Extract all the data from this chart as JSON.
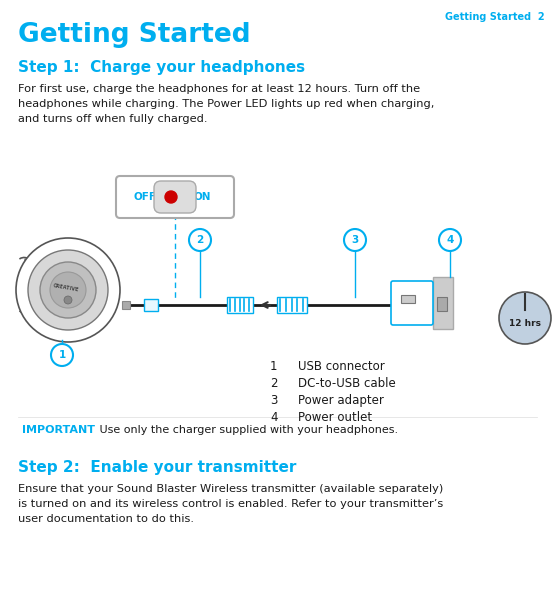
{
  "page_header": "Getting Started  2",
  "main_title": "Getting Started",
  "step1_title": "Step 1:  Charge your headphones",
  "step1_text": "For first use, charge the headphones for at least 12 hours. Turn off the\nheadphones while charging. The Power LED lights up red when charging,\nand turns off when fully charged.",
  "step2_title": "Step 2:  Enable your transmitter",
  "step2_text": "Ensure that your Sound Blaster Wireless transmitter (available separately)\nis turned on and its wireless control is enabled. Refer to your transmitter’s\nuser documentation to do this.",
  "important_label": "IMPORTANT",
  "important_text": " Use only the charger supplied with your headphones.",
  "legend_items": [
    {
      "num": "1",
      "label": "USB connector"
    },
    {
      "num": "2",
      "label": "DC-to-USB cable"
    },
    {
      "num": "3",
      "label": "Power adapter"
    },
    {
      "num": "4",
      "label": "Power outlet"
    }
  ],
  "cyan_color": "#00AEEF",
  "dark_color": "#1a1a1a",
  "bg_color": "#ffffff",
  "fig_width": 5.55,
  "fig_height": 6.15
}
